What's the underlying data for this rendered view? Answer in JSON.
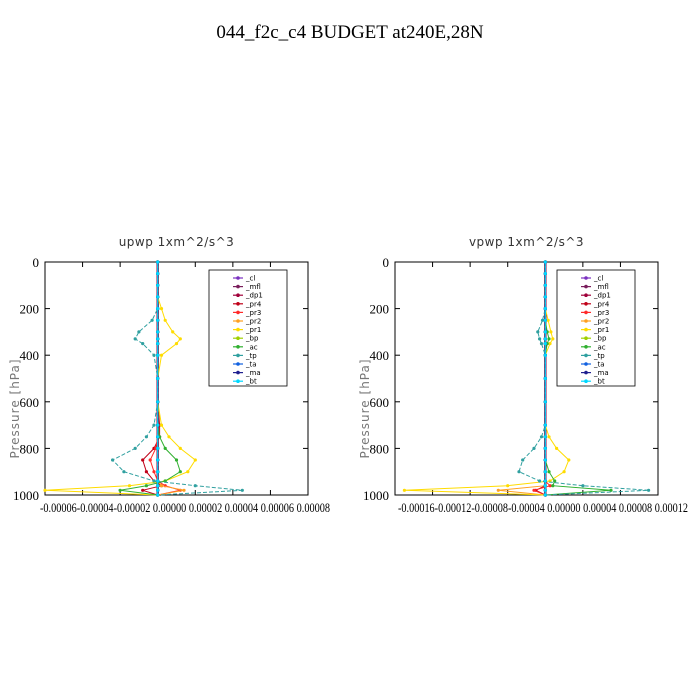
{
  "figure_title": "044_f2c_c4  BUDGET at240E,28N",
  "chart_data": [
    {
      "type": "line",
      "title": "upwp   1xm^2/s^3",
      "ylabel": "Pressure [hPa]",
      "ylim": [
        1000,
        0
      ],
      "yticks": [
        "0",
        "200",
        "400",
        "600",
        "800",
        "1000"
      ],
      "xlim": [
        -6e-05,
        8e-05
      ],
      "xtick_labels": "-0.00006-0.00004-0.00002 0.00000 0.00002 0.00004 0.00006 0.00008",
      "xtick_values": [
        -6e-05,
        -4e-05,
        -2e-05,
        0.0,
        2e-05,
        4e-05,
        6e-05,
        8e-05
      ],
      "legend_position": "top-right",
      "levels": [
        0,
        50,
        100,
        150,
        200,
        250,
        300,
        330,
        350,
        400,
        500,
        600,
        700,
        750,
        800,
        850,
        900,
        940,
        960,
        980,
        1000
      ],
      "series": [
        {
          "name": "_cl",
          "color": "#7a30c0",
          "values": [
            0,
            0,
            0,
            0,
            0,
            0,
            0,
            0,
            0,
            0,
            0,
            0,
            0,
            0,
            0,
            0,
            0,
            0,
            0,
            0,
            0
          ]
        },
        {
          "name": "_mfl",
          "color": "#7a1e5c",
          "values": [
            0,
            0,
            0,
            0,
            0,
            0,
            0,
            0,
            0,
            0,
            0,
            0,
            0,
            0,
            0,
            0,
            0,
            0,
            0,
            0,
            0
          ]
        },
        {
          "name": "_dp1",
          "color": "#a0003a",
          "values": [
            0,
            0,
            0,
            0,
            0,
            0,
            0,
            0,
            0,
            0,
            0,
            0,
            0,
            0,
            0,
            0,
            0,
            0,
            0,
            0,
            0
          ]
        },
        {
          "name": "_pr4",
          "color": "#c00018",
          "values": [
            0,
            0,
            0,
            0,
            0,
            0,
            0,
            0,
            0,
            0,
            0,
            0,
            1e-06,
            1e-06,
            -2e-06,
            -8e-06,
            -6e-06,
            -2e-06,
            2e-06,
            -8e-06,
            0
          ]
        },
        {
          "name": "_pr3",
          "color": "#ff2a2a",
          "values": [
            0,
            0,
            0,
            0,
            0,
            0,
            0,
            0,
            0,
            0,
            0,
            0,
            0,
            0,
            -1e-06,
            -4e-06,
            -2e-06,
            0,
            4e-06,
            1.2e-05,
            0
          ]
        },
        {
          "name": "_pr2",
          "color": "#ffa020",
          "values": [
            0,
            0,
            0,
            0,
            0,
            0,
            0,
            0,
            0,
            0,
            0,
            0,
            0,
            0,
            0,
            0,
            0,
            0,
            2e-06,
            1.4e-05,
            0
          ]
        },
        {
          "name": "_pr1",
          "color": "#ffdc00",
          "values": [
            0,
            0,
            0,
            0,
            2e-06,
            4e-06,
            8e-06,
            1.2e-05,
            1e-05,
            2e-06,
            0,
            0,
            2e-06,
            6e-06,
            1.2e-05,
            2e-05,
            1.6e-05,
            4e-06,
            -1.5e-05,
            -6e-05,
            0
          ]
        },
        {
          "name": "_bp",
          "color": "#a0d000",
          "values": [
            0,
            0,
            0,
            0,
            0,
            0,
            0,
            0,
            0,
            0,
            0,
            0,
            0,
            0,
            0,
            0,
            0,
            0,
            0,
            0,
            0
          ]
        },
        {
          "name": "_ac",
          "color": "#30b030",
          "values": [
            0,
            0,
            0,
            0,
            0,
            0,
            0,
            0,
            0,
            0,
            0,
            0,
            0,
            1e-06,
            4e-06,
            1e-05,
            1.2e-05,
            4e-06,
            -6e-06,
            -2e-05,
            0
          ]
        },
        {
          "name": "_tp",
          "color": "#30a0a0",
          "values": [
            0,
            0,
            0,
            0,
            0,
            -3e-06,
            -1e-05,
            -1.2e-05,
            -8e-06,
            -2e-06,
            0,
            0,
            -2e-06,
            -6e-06,
            -1.2e-05,
            -2.4e-05,
            -1.8e-05,
            -2e-06,
            2e-05,
            4.5e-05,
            0
          ]
        },
        {
          "name": "_ta",
          "color": "#1060e0",
          "values": [
            0,
            0,
            0,
            0,
            0,
            0,
            0,
            0,
            0,
            0,
            0,
            0,
            0,
            0,
            0,
            0,
            0,
            0,
            0,
            0,
            0
          ]
        },
        {
          "name": "_ma",
          "color": "#202090",
          "values": [
            0,
            0,
            0,
            0,
            0,
            0,
            0,
            0,
            0,
            0,
            0,
            0,
            0,
            0,
            0,
            0,
            0,
            0,
            0,
            0,
            0
          ]
        },
        {
          "name": "_bt",
          "color": "#00d8ff",
          "values": [
            0,
            0,
            0,
            0,
            0,
            0,
            0,
            0,
            0,
            0,
            0,
            0,
            0,
            0,
            0,
            0,
            0,
            0,
            0,
            0,
            0
          ]
        }
      ]
    },
    {
      "type": "line",
      "title": "vpwp   1xm^2/s^3",
      "ylabel": "Pressure [hPa]",
      "ylim": [
        1000,
        0
      ],
      "yticks": [
        "0",
        "200",
        "400",
        "600",
        "800",
        "1000"
      ],
      "xlim": [
        -0.00016,
        0.00012
      ],
      "xtick_labels": "-0.00016-0.00012-0.00008-0.00004 0.00000 0.00004 0.00008 0.00012",
      "xtick_values": [
        -0.00016,
        -0.00012,
        -8e-05,
        -4e-05,
        0.0,
        4e-05,
        8e-05,
        0.00012
      ],
      "legend_position": "top-right",
      "levels": [
        0,
        50,
        100,
        150,
        200,
        250,
        300,
        330,
        350,
        400,
        500,
        600,
        700,
        750,
        800,
        850,
        900,
        940,
        960,
        980,
        1000
      ],
      "series": [
        {
          "name": "_cl",
          "color": "#7a30c0",
          "values": [
            0,
            0,
            0,
            0,
            0,
            0,
            0,
            0,
            0,
            0,
            0,
            0,
            0,
            0,
            0,
            0,
            0,
            0,
            0,
            0,
            0
          ]
        },
        {
          "name": "_mfl",
          "color": "#7a1e5c",
          "values": [
            0,
            0,
            0,
            0,
            0,
            0,
            0,
            0,
            0,
            0,
            0,
            0,
            0,
            0,
            0,
            0,
            0,
            0,
            0,
            0,
            0
          ]
        },
        {
          "name": "_dp1",
          "color": "#a0003a",
          "values": [
            0,
            0,
            0,
            0,
            0,
            0,
            0,
            0,
            0,
            0,
            0,
            0,
            0,
            0,
            0,
            0,
            0,
            0,
            0,
            0,
            0
          ]
        },
        {
          "name": "_pr4",
          "color": "#c00018",
          "values": [
            0,
            0,
            0,
            0,
            0,
            0,
            0,
            0,
            0,
            0,
            0,
            0,
            0,
            0,
            0,
            0,
            0,
            0,
            0,
            -1e-05,
            0
          ]
        },
        {
          "name": "_pr3",
          "color": "#ff2a2a",
          "values": [
            0,
            0,
            0,
            0,
            0,
            0,
            0,
            0,
            0,
            0,
            0,
            0,
            0,
            0,
            0,
            0,
            0,
            0,
            5e-06,
            -1.2e-05,
            0
          ]
        },
        {
          "name": "_pr2",
          "color": "#ffa020",
          "values": [
            0,
            0,
            0,
            0,
            0,
            0,
            0,
            0,
            0,
            0,
            0,
            0,
            0,
            0,
            0,
            0,
            0,
            0,
            0,
            -5e-05,
            0
          ]
        },
        {
          "name": "_pr1",
          "color": "#ffdc00",
          "values": [
            0,
            0,
            0,
            0,
            0,
            3e-06,
            6e-06,
            8e-06,
            5e-06,
            0,
            0,
            0,
            0,
            4e-06,
            1.2e-05,
            2.5e-05,
            2e-05,
            5e-06,
            -4e-05,
            -0.00015,
            0
          ]
        },
        {
          "name": "_bp",
          "color": "#a0d000",
          "values": [
            0,
            0,
            0,
            0,
            0,
            0,
            0,
            0,
            0,
            0,
            0,
            0,
            0,
            0,
            0,
            0,
            0,
            0,
            0,
            0,
            0
          ]
        },
        {
          "name": "_ac",
          "color": "#30b030",
          "values": [
            0,
            0,
            0,
            0,
            0,
            0,
            2e-06,
            4e-06,
            2e-06,
            0,
            0,
            0,
            0,
            0,
            0,
            0,
            4e-06,
            1e-05,
            8e-06,
            7e-05,
            0
          ]
        },
        {
          "name": "_tp",
          "color": "#30a0a0",
          "values": [
            0,
            0,
            0,
            0,
            0,
            -3e-06,
            -8e-06,
            -6e-06,
            -4e-06,
            0,
            0,
            0,
            0,
            -4e-06,
            -1.2e-05,
            -2.4e-05,
            -2.8e-05,
            -6e-06,
            4e-05,
            0.00011,
            0
          ]
        },
        {
          "name": "_ta",
          "color": "#1060e0",
          "values": [
            0,
            0,
            0,
            0,
            0,
            0,
            0,
            0,
            0,
            0,
            0,
            0,
            0,
            0,
            0,
            0,
            0,
            0,
            0,
            0,
            0
          ]
        },
        {
          "name": "_ma",
          "color": "#202090",
          "values": [
            0,
            0,
            0,
            0,
            0,
            0,
            0,
            0,
            0,
            0,
            0,
            0,
            0,
            0,
            0,
            0,
            0,
            0,
            0,
            0,
            0
          ]
        },
        {
          "name": "_bt",
          "color": "#00d8ff",
          "values": [
            0,
            0,
            0,
            0,
            0,
            0,
            0,
            0,
            0,
            0,
            0,
            0,
            0,
            0,
            0,
            0,
            0,
            0,
            0,
            0,
            0
          ]
        }
      ]
    }
  ]
}
